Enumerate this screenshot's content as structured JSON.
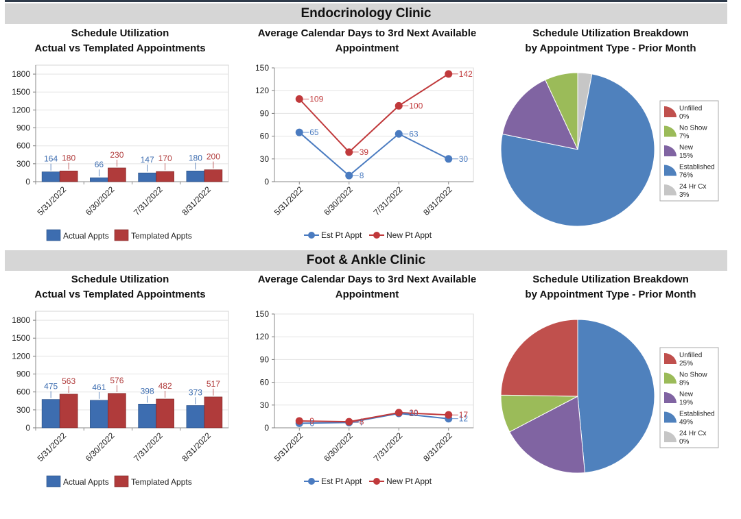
{
  "colors": {
    "actual": "#3d6db0",
    "templated": "#b03b3b",
    "est": "#4a7bc0",
    "new": "#c0393b",
    "unfilled": "#c0504d",
    "noshow": "#9bbb59",
    "new_type": "#8064a2",
    "established": "#4f81bd",
    "cx24": "#c6c6c6"
  },
  "sections": [
    {
      "title": "Endocrinology Clinic",
      "util_title": [
        "Schedule Utilization",
        "Actual vs Templated Appointments"
      ],
      "days_title": [
        "Average Calendar Days to 3rd Next Available",
        "Appointment"
      ],
      "breakdown_title": [
        "Schedule Utilization Breakdown",
        "by Appointment Type - Prior Month"
      ]
    },
    {
      "title": "Foot & Ankle Clinic",
      "util_title": [
        "Schedule Utilization",
        "Actual vs Templated Appointments"
      ],
      "days_title": [
        "Average Calendar Days to 3rd Next Available",
        "Appointment"
      ],
      "breakdown_title": [
        "Schedule Utilization Breakdown",
        "by Appointment Type - Prior Month"
      ]
    }
  ],
  "chart_data": [
    {
      "type": "bar",
      "categories": [
        "5/31/2022",
        "6/30/2022",
        "7/31/2022",
        "8/31/2022"
      ],
      "series": [
        {
          "name": "Actual Appts",
          "values": [
            164,
            66,
            147,
            180
          ]
        },
        {
          "name": "Templated Appts",
          "values": [
            180,
            230,
            170,
            200
          ]
        }
      ],
      "yticks": [
        "0",
        "300",
        "600",
        "900",
        "1200",
        "1500",
        "1800"
      ],
      "ylim": [
        0,
        1950
      ]
    },
    {
      "type": "line",
      "categories": [
        "5/31/2022",
        "6/30/2022",
        "7/31/2022",
        "8/31/2022"
      ],
      "series": [
        {
          "name": "Est Pt Appt",
          "values": [
            65,
            8,
            63,
            30
          ]
        },
        {
          "name": "New Pt Appt",
          "values": [
            109,
            39,
            100,
            142
          ]
        }
      ],
      "yticks": [
        "0",
        "30",
        "60",
        "90",
        "120",
        "150"
      ],
      "ylim": [
        0,
        150
      ]
    },
    {
      "type": "pie",
      "slices": [
        {
          "label": "Unfilled",
          "pct": "0%",
          "value": 0
        },
        {
          "label": "No Show",
          "pct": "7%",
          "value": 7
        },
        {
          "label": "New",
          "pct": "15%",
          "value": 15
        },
        {
          "label": "Established",
          "pct": "76%",
          "value": 76
        },
        {
          "label": "24 Hr Cx",
          "pct": "3%",
          "value": 3
        }
      ]
    },
    {
      "type": "bar",
      "categories": [
        "5/31/2022",
        "6/30/2022",
        "7/31/2022",
        "8/31/2022"
      ],
      "series": [
        {
          "name": "Actual Appts",
          "values": [
            475,
            461,
            398,
            373
          ]
        },
        {
          "name": "Templated Appts",
          "values": [
            563,
            576,
            482,
            517
          ]
        }
      ],
      "yticks": [
        "0",
        "300",
        "600",
        "900",
        "1200",
        "1500",
        "1800"
      ],
      "ylim": [
        0,
        1950
      ]
    },
    {
      "type": "line",
      "categories": [
        "5/31/2022",
        "6/30/2022",
        "7/31/2022",
        "8/31/2022"
      ],
      "series": [
        {
          "name": "Est Pt Appt",
          "values": [
            6,
            7,
            19,
            12
          ]
        },
        {
          "name": "New Pt Appt",
          "values": [
            9,
            8,
            20,
            17
          ]
        }
      ],
      "yticks": [
        "0",
        "30",
        "60",
        "90",
        "120",
        "150"
      ],
      "ylim": [
        0,
        150
      ]
    },
    {
      "type": "pie",
      "slices": [
        {
          "label": "Unfilled",
          "pct": "25%",
          "value": 25
        },
        {
          "label": "No Show",
          "pct": "8%",
          "value": 8
        },
        {
          "label": "New",
          "pct": "19%",
          "value": 19
        },
        {
          "label": "Established",
          "pct": "49%",
          "value": 49
        },
        {
          "label": "24 Hr Cx",
          "pct": "0%",
          "value": 0
        }
      ]
    }
  ]
}
